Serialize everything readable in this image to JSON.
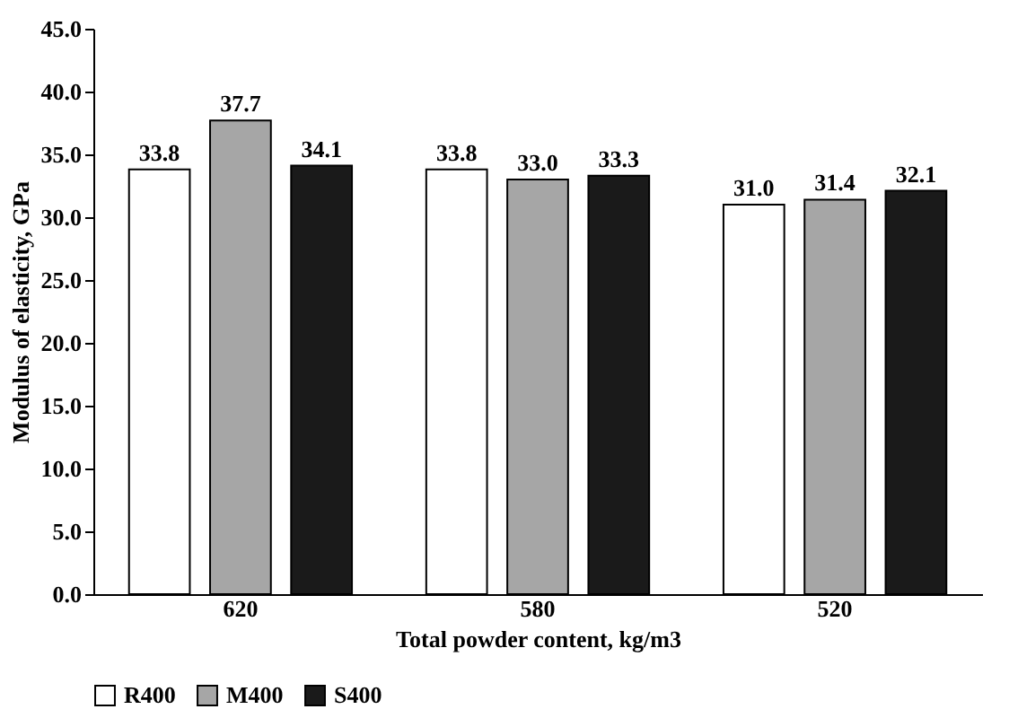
{
  "chart_data": {
    "type": "bar",
    "xlabel": "Total powder content, kg/m3",
    "ylabel": "Modulus of elasticity, GPa",
    "categories": [
      "620",
      "580",
      "520"
    ],
    "series": [
      {
        "name": "R400",
        "color": "#ffffff",
        "values": [
          33.8,
          33.8,
          31.0
        ],
        "value_labels": [
          "33.8",
          "33.8",
          "31.0"
        ]
      },
      {
        "name": "M400",
        "color": "#a6a6a6",
        "values": [
          37.7,
          33.0,
          31.4
        ],
        "value_labels": [
          "37.7",
          "33.0",
          "31.4"
        ]
      },
      {
        "name": "S400",
        "color": "#1a1a1a",
        "values": [
          34.1,
          33.3,
          32.1
        ],
        "value_labels": [
          "34.1",
          "33.3",
          "32.1"
        ]
      }
    ],
    "ylim": [
      0,
      45
    ],
    "yticks": [
      {
        "value": 0,
        "label": "0.0"
      },
      {
        "value": 5,
        "label": "5.0"
      },
      {
        "value": 10,
        "label": "10.0"
      },
      {
        "value": 15,
        "label": "15.0"
      },
      {
        "value": 20,
        "label": "20.0"
      },
      {
        "value": 25,
        "label": "25.0"
      },
      {
        "value": 30,
        "label": "30.0"
      },
      {
        "value": 35,
        "label": "35.0"
      },
      {
        "value": 40,
        "label": "40.0"
      },
      {
        "value": 45,
        "label": "45.0"
      }
    ],
    "grid": false,
    "legend": "bottom"
  }
}
